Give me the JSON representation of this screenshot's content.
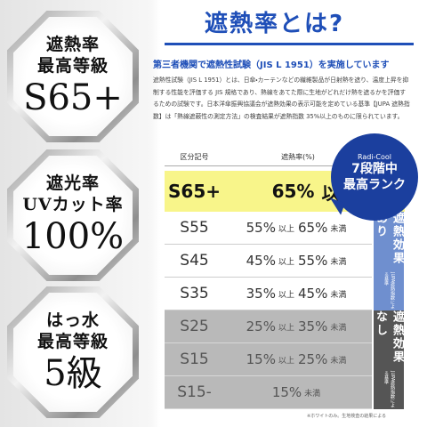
{
  "badges": [
    {
      "line1": "遮熱率",
      "line2": "最高等級",
      "big": "S65+"
    },
    {
      "line1": "遮光率",
      "line2": "UVカット率",
      "big": "100%"
    },
    {
      "line1": "はっ水",
      "line2": "最高等級",
      "big": "5級"
    }
  ],
  "title": "遮熱率とは?",
  "subtitle": "第三者機関で遮熱性試験（JIS L 1951）を実施しています",
  "body": "遮熱性試験（JIS L 1951）とは、日傘・カーテンなどの繊維製品が日射熱を遮り、温度上昇を抑制する性能を評価する JIS 規格であり、熱線をあてた際に生地がどれだけ熱を遮るかを評価するための試験です。日本洋傘振興協議会が遮熱効果の表示可能を定めている基準【JUPA 遮熱指数】は「熱線遮蔽性の測定方法」の検査結果が遮熱指数 35%以上のものに限られています。",
  "badge": {
    "brand": "Radi-Cool",
    "line1": "7段階中",
    "line2": "最高ランク"
  },
  "table": {
    "headers": [
      "区分記号",
      "遮熱率(%)"
    ],
    "rows": [
      {
        "code": "S65+",
        "rate": [
          "65%",
          "以上"
        ]
      },
      {
        "code": "S55",
        "rate": [
          "55%",
          "以上",
          "65%",
          "未満"
        ]
      },
      {
        "code": "S45",
        "rate": [
          "45%",
          "以上",
          "55%",
          "未満"
        ]
      },
      {
        "code": "S35",
        "rate": [
          "35%",
          "以上",
          "45%",
          "未満"
        ]
      },
      {
        "code": "S25",
        "rate": [
          "25%",
          "以上",
          "35%",
          "未満"
        ]
      },
      {
        "code": "S15",
        "rate": [
          "15%",
          "以上",
          "25%",
          "未満"
        ]
      },
      {
        "code": "S15-",
        "rate": [
          "15%",
          "未満"
        ]
      }
    ],
    "effective": {
      "label": "遮熱効果あり",
      "note": "JUPA遮熱指数による基準"
    },
    "ineffective": {
      "label": "遮熱効果なし",
      "note": "JUPA遮熱指数による基準"
    }
  },
  "footnote": "※ホワイトのみ。生地検査の結果による"
}
